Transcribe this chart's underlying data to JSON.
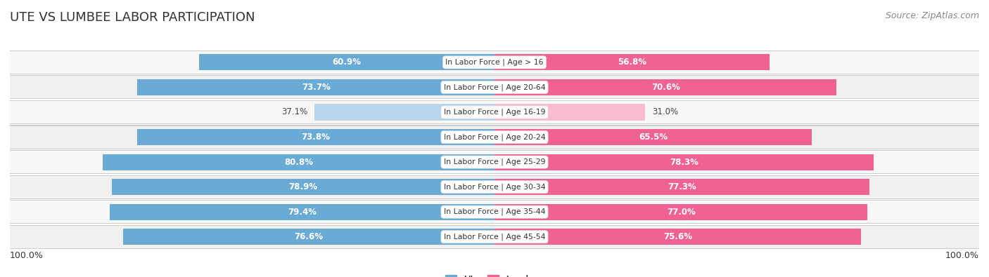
{
  "title": "UTE VS LUMBEE LABOR PARTICIPATION",
  "source": "Source: ZipAtlas.com",
  "categories": [
    "In Labor Force | Age > 16",
    "In Labor Force | Age 20-64",
    "In Labor Force | Age 16-19",
    "In Labor Force | Age 20-24",
    "In Labor Force | Age 25-29",
    "In Labor Force | Age 30-34",
    "In Labor Force | Age 35-44",
    "In Labor Force | Age 45-54"
  ],
  "ute_values": [
    60.9,
    73.7,
    37.1,
    73.8,
    80.8,
    78.9,
    79.4,
    76.6
  ],
  "lumbee_values": [
    56.8,
    70.6,
    31.0,
    65.5,
    78.3,
    77.3,
    77.0,
    75.6
  ],
  "ute_color": "#6aabd6",
  "ute_color_light": "#b8d5ec",
  "lumbee_color": "#f06292",
  "lumbee_color_light": "#f8bbd0",
  "row_bg_even": "#f7f7f7",
  "row_bg_odd": "#eeeeee",
  "max_value": 100.0,
  "legend_ute": "Ute",
  "legend_lumbee": "Lumbee",
  "title_fontsize": 13,
  "source_fontsize": 9,
  "label_fontsize": 8.5,
  "cat_fontsize": 7.8,
  "bar_height": 0.65,
  "figsize": [
    14.06,
    3.95
  ]
}
